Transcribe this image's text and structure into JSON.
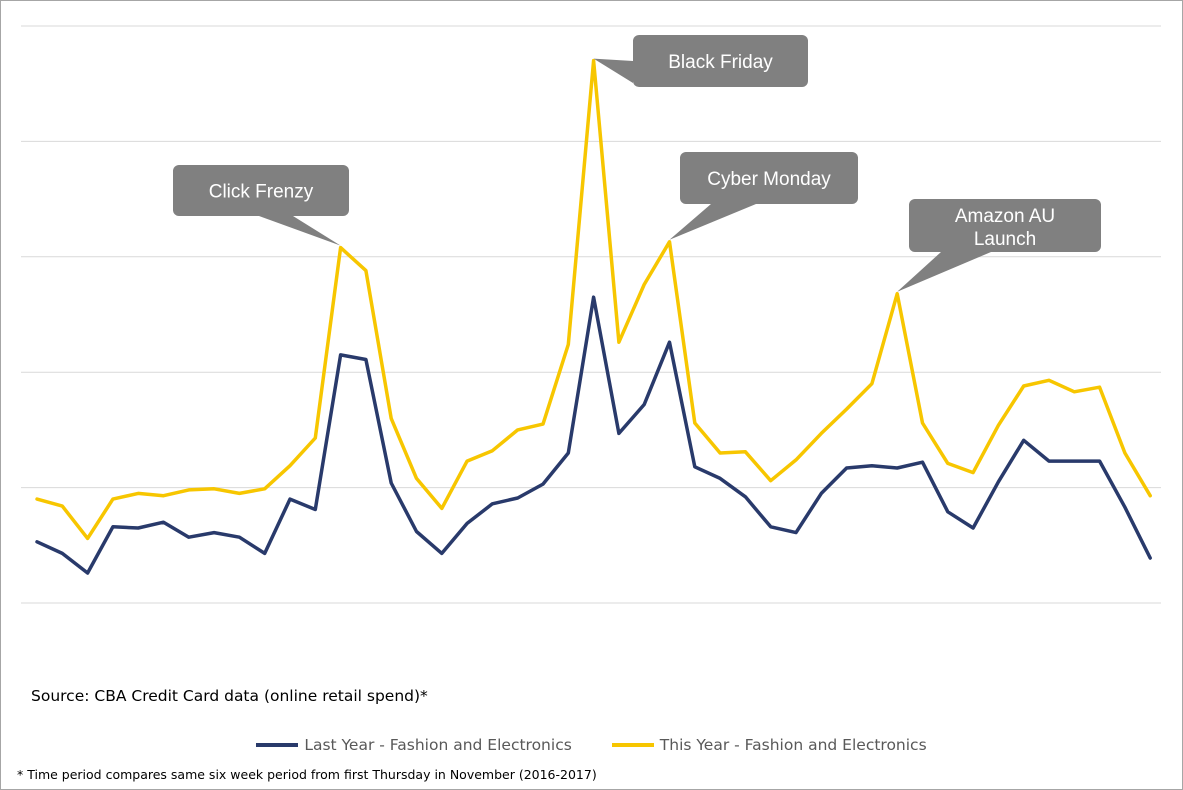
{
  "chart_data": {
    "type": "line",
    "title": "",
    "xlabel": "",
    "ylabel": "",
    "ylim": [
      0,
      5
    ],
    "grid": true,
    "legend_position": "bottom",
    "series": [
      {
        "name": "Last Year - Fashion and Electronics",
        "color": "#293a6b",
        "values": [
          0.53,
          0.43,
          0.26,
          0.66,
          0.65,
          0.7,
          0.57,
          0.61,
          0.57,
          0.43,
          0.9,
          0.81,
          2.15,
          2.11,
          1.04,
          0.62,
          0.43,
          0.69,
          0.86,
          0.91,
          1.03,
          1.3,
          2.65,
          1.47,
          1.72,
          2.26,
          1.18,
          1.08,
          0.92,
          0.66,
          0.61,
          0.95,
          1.17,
          1.19,
          1.17,
          1.22,
          0.79,
          0.65,
          1.05,
          1.41,
          1.23,
          1.23,
          1.23,
          0.83,
          0.39
        ]
      },
      {
        "name": "This Year - Fashion and Electronics",
        "color": "#f7c600",
        "values": [
          0.9,
          0.84,
          0.56,
          0.9,
          0.95,
          0.93,
          0.98,
          0.99,
          0.95,
          0.99,
          1.19,
          1.43,
          3.08,
          2.88,
          1.6,
          1.08,
          0.82,
          1.23,
          1.32,
          1.5,
          1.55,
          2.24,
          4.7,
          2.26,
          2.76,
          3.13,
          1.56,
          1.3,
          1.31,
          1.06,
          1.24,
          1.47,
          1.68,
          1.9,
          2.68,
          1.56,
          1.21,
          1.13,
          1.54,
          1.88,
          1.93,
          1.83,
          1.87,
          1.3,
          0.93
        ]
      }
    ],
    "annotations": [
      {
        "text": "Click Frenzy",
        "series": 1,
        "index": 12
      },
      {
        "text": "Black Friday",
        "series": 1,
        "index": 22
      },
      {
        "text": "Cyber Monday",
        "series": 1,
        "index": 25
      },
      {
        "text": "Amazon AU Launch",
        "series": 1,
        "index": 34
      }
    ]
  },
  "source_note": "Source: CBA Credit Card data (online retail spend)*",
  "footnote": "* Time period compares same six week period from first Thursday in November (2016-2017)"
}
